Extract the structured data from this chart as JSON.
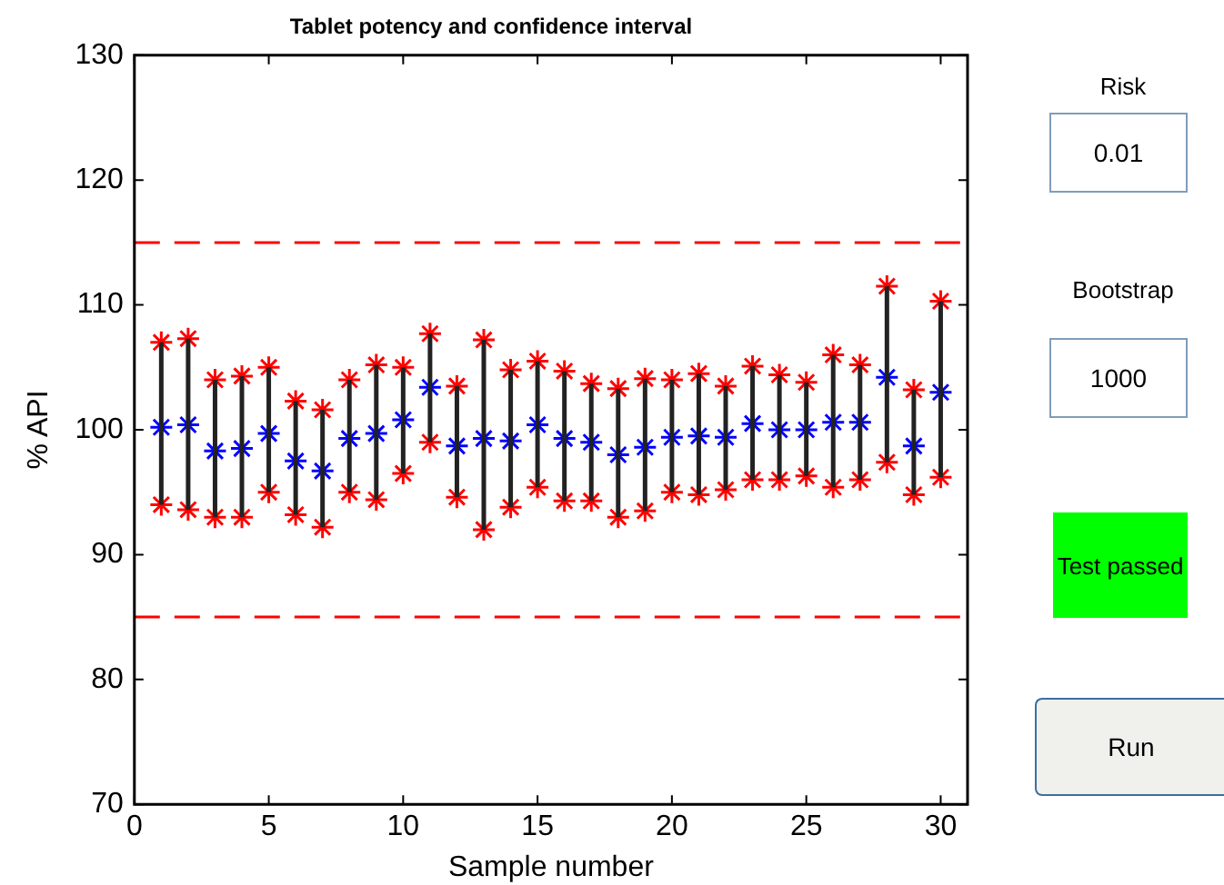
{
  "chart_data": {
    "type": "scatter",
    "title": "Tablet potency and confidence interval",
    "xlabel": "Sample number",
    "ylabel": "% API",
    "x": [
      1,
      2,
      3,
      4,
      5,
      6,
      7,
      8,
      9,
      10,
      11,
      12,
      13,
      14,
      15,
      16,
      17,
      18,
      19,
      20,
      21,
      22,
      23,
      24,
      25,
      26,
      27,
      28,
      29,
      30
    ],
    "series": [
      {
        "color": "#0000ff",
        "values": [
          100.2,
          100.4,
          98.3,
          98.5,
          99.7,
          97.5,
          96.7,
          99.3,
          99.7,
          100.8,
          103.4,
          98.7,
          99.3,
          99.1,
          100.4,
          99.3,
          99.0,
          98.0,
          98.6,
          99.4,
          99.5,
          99.4,
          100.5,
          100.0,
          100.0,
          100.6,
          100.6,
          104.2,
          98.7,
          103.0
        ],
        "errors": [
          [
            94.0,
            107.0
          ],
          [
            93.6,
            107.3
          ],
          [
            93.0,
            104.0
          ],
          [
            93.0,
            104.3
          ],
          [
            95.0,
            105.0
          ],
          [
            93.2,
            102.3
          ],
          [
            92.2,
            101.6
          ],
          [
            95.0,
            104.0
          ],
          [
            94.4,
            105.2
          ],
          [
            96.5,
            105.0
          ],
          [
            99.0,
            107.7
          ],
          [
            94.6,
            103.5
          ],
          [
            92.0,
            107.2
          ],
          [
            93.8,
            104.8
          ],
          [
            95.4,
            105.5
          ],
          [
            94.3,
            104.7
          ],
          [
            94.3,
            103.7
          ],
          [
            93.0,
            103.3
          ],
          [
            93.5,
            104.1
          ],
          [
            95.0,
            104.0
          ],
          [
            94.8,
            104.5
          ],
          [
            95.2,
            103.5
          ],
          [
            96.0,
            105.1
          ],
          [
            96.0,
            104.4
          ],
          [
            96.3,
            103.8
          ],
          [
            95.4,
            106.0
          ],
          [
            96.0,
            105.2
          ],
          [
            97.4,
            111.5
          ],
          [
            94.8,
            103.2
          ],
          [
            96.2,
            110.3
          ]
        ]
      }
    ],
    "xlim": [
      0,
      31
    ],
    "xticks": [
      0,
      5,
      10,
      15,
      20,
      25,
      30
    ],
    "ylim": [
      70,
      130
    ],
    "yticks": [
      70,
      80,
      90,
      100,
      110,
      120,
      130
    ],
    "ref_lines": [
      {
        "axis": "y",
        "value": 115,
        "color": "#ff0000",
        "line_style": "dashed"
      },
      {
        "axis": "y",
        "value": 85,
        "color": "#ff0000",
        "line_style": "dashed"
      }
    ],
    "marker": "cross",
    "grid": false,
    "legend": false,
    "annotations": [
      "Risk",
      "0.01",
      "Bootstrap",
      "1000",
      "Test passed",
      "Run"
    ]
  }
}
